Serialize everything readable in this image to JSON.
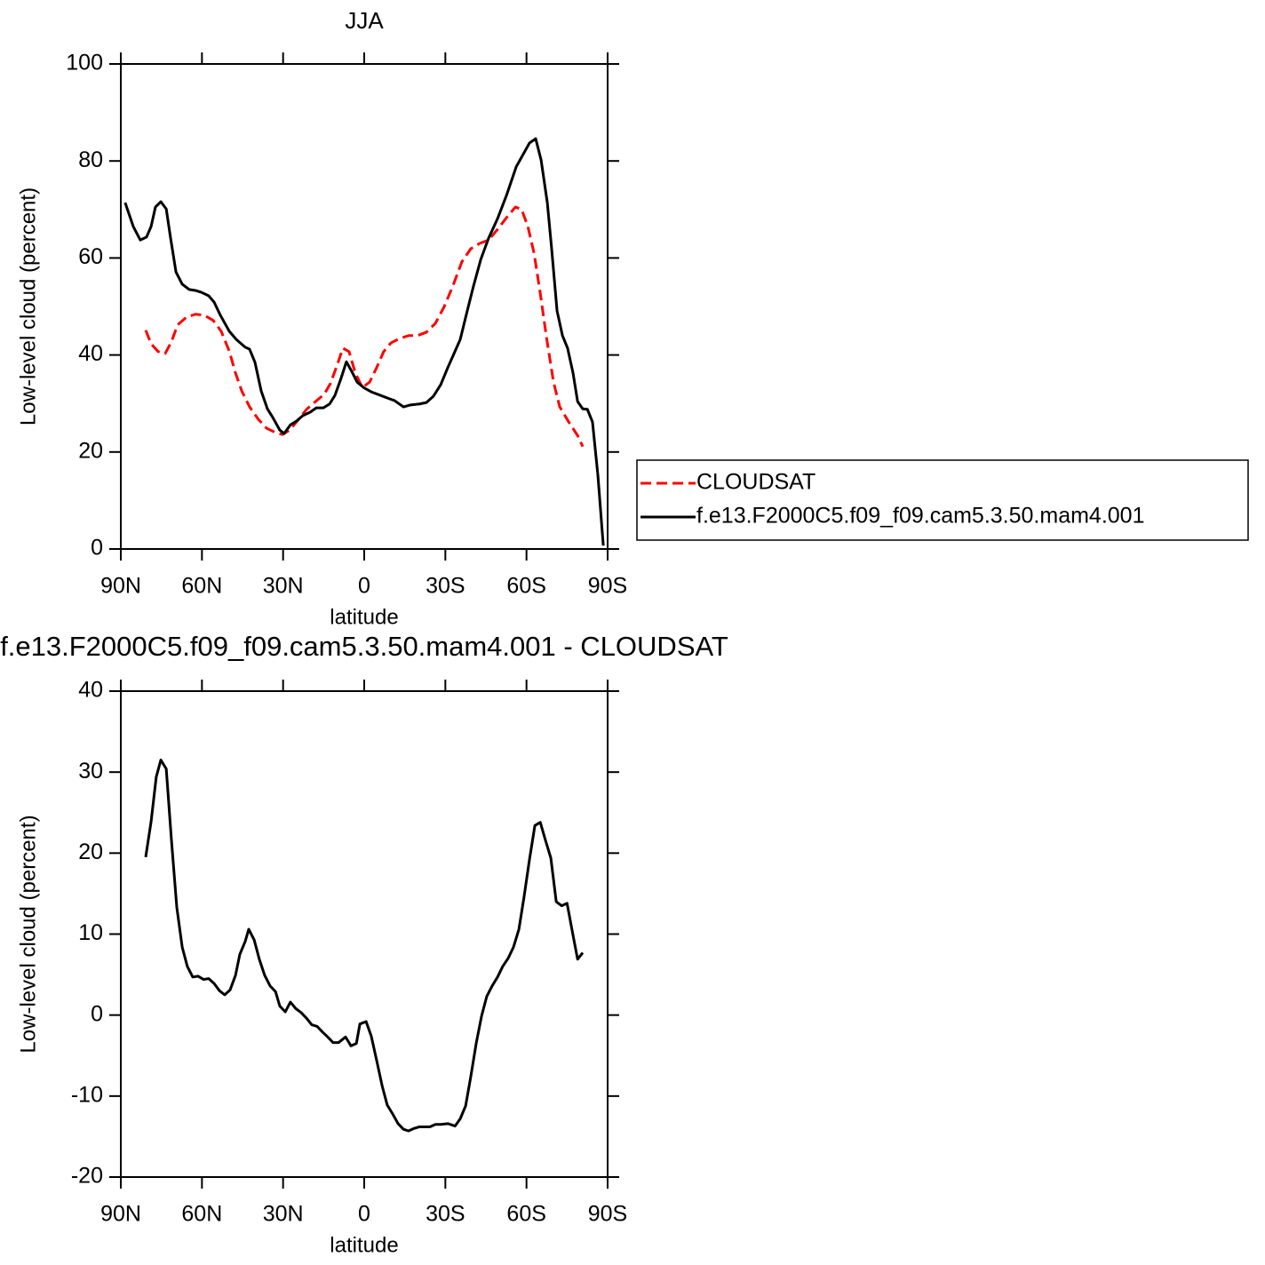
{
  "chart_data": [
    {
      "type": "line",
      "title": "JJA",
      "xlabel": "latitude",
      "ylabel": "Low-level cloud (percent)",
      "xlim": [
        90,
        -90
      ],
      "xticks": [
        {
          "value": 90,
          "label": "90N"
        },
        {
          "value": 60,
          "label": "60N"
        },
        {
          "value": 30,
          "label": "30N"
        },
        0,
        {
          "value": -30,
          "label": "30S"
        },
        {
          "value": -60,
          "label": "60S"
        },
        {
          "value": -90,
          "label": "90S"
        }
      ],
      "ylim": [
        0,
        100
      ],
      "yticks": [
        0,
        20,
        40,
        60,
        80,
        100
      ],
      "legend": "right",
      "series": [
        {
          "name": "CLOUDSAT",
          "color": "#ff0000",
          "linestyle": "dashed",
          "x": [
            80.8,
            78.8,
            76.2,
            73.6,
            71.3,
            69.0,
            65.7,
            62.4,
            59.1,
            55.8,
            52.9,
            49.9,
            47.6,
            45.3,
            42.4,
            39.1,
            36.1,
            32.8,
            30.2,
            27.6,
            24.3,
            21.3,
            18.0,
            14.8,
            12.5,
            9.9,
            7.9,
            5.6,
            3.3,
            0.7,
            -2.0,
            -4.6,
            -7.2,
            -9.9,
            -13.1,
            -16.4,
            -19.7,
            -23.0,
            -26.3,
            -29.6,
            -32.9,
            -36.1,
            -39.4,
            -42.7,
            -46.0,
            -49.3,
            -52.6,
            -55.9,
            -58.2,
            -60.5,
            -62.8,
            -65.1,
            -67.4,
            -70.0,
            -72.3,
            -75.6,
            -78.9,
            -80.8
          ],
          "values": [
            45.1,
            42.3,
            40.7,
            40.3,
            42.7,
            46.2,
            47.8,
            48.4,
            48.2,
            47.1,
            44.9,
            40.8,
            36.3,
            32.6,
            29.3,
            26.7,
            24.9,
            24.0,
            23.6,
            24.5,
            26.7,
            28.8,
            30.4,
            31.9,
            34.1,
            38.1,
            41.4,
            40.7,
            36.3,
            33.3,
            34.4,
            37.4,
            40.7,
            42.5,
            43.4,
            44.0,
            44.0,
            44.7,
            46.5,
            50.0,
            54.4,
            59.2,
            61.9,
            63.0,
            63.7,
            65.9,
            68.3,
            70.5,
            70.0,
            66.5,
            61.0,
            52.7,
            43.6,
            34.4,
            29.3,
            26.2,
            23.4,
            21.1
          ]
        },
        {
          "name": "f.e13.F2000C5.f09_f09.cam5.3.50.mam4.001",
          "color": "#000000",
          "linestyle": "solid",
          "x": [
            88.4,
            85.4,
            82.8,
            80.5,
            78.8,
            77.2,
            75.2,
            73.2,
            71.6,
            69.6,
            67.3,
            64.7,
            62.4,
            60.1,
            57.5,
            55.5,
            53.2,
            49.9,
            47.3,
            44.0,
            42.4,
            40.4,
            38.1,
            35.8,
            33.8,
            31.2,
            29.6,
            27.3,
            25.0,
            22.7,
            20.0,
            17.7,
            15.1,
            12.8,
            10.8,
            8.5,
            6.6,
            4.6,
            2.6,
            0,
            -2.6,
            -5.9,
            -9.2,
            -11.2,
            -14.5,
            -17.1,
            -20.4,
            -23.0,
            -25.6,
            -28.3,
            -30.9,
            -33.6,
            -35.5,
            -38.1,
            -40.4,
            -43.1,
            -46.0,
            -49.3,
            -52.6,
            -56.2,
            -59.1,
            -61.1,
            -63.4,
            -65.4,
            -67.7,
            -69.3,
            -71.3,
            -73.3,
            -75.2,
            -77.2,
            -78.9,
            -80.8,
            -82.5,
            -84.4,
            -86.4,
            -88.4
          ],
          "values": [
            71.4,
            66.5,
            63.7,
            64.3,
            66.5,
            70.5,
            71.6,
            70.1,
            64.1,
            57.1,
            54.6,
            53.5,
            53.3,
            52.9,
            52.2,
            50.9,
            48.2,
            44.9,
            43.2,
            41.6,
            41.2,
            38.5,
            32.6,
            28.9,
            27.1,
            24.5,
            23.8,
            25.6,
            26.4,
            27.5,
            28.2,
            29.1,
            29.1,
            29.9,
            31.7,
            35.3,
            38.6,
            36.6,
            34.4,
            33.2,
            32.4,
            31.7,
            31.0,
            30.6,
            29.3,
            29.7,
            29.9,
            30.2,
            31.5,
            33.9,
            37.4,
            40.8,
            43.2,
            49.1,
            54.2,
            59.7,
            64.1,
            68.1,
            72.9,
            78.8,
            81.7,
            83.7,
            84.6,
            80.2,
            71.4,
            61.9,
            49.1,
            44.0,
            41.4,
            36.3,
            30.4,
            28.9,
            28.8,
            26.2,
            15.2,
            0.7
          ]
        }
      ]
    },
    {
      "type": "line",
      "title": "f.e13.F2000C5.f09_f09.cam5.3.50.mam4.001 - CLOUDSAT",
      "xlabel": "latitude",
      "ylabel": "Low-level cloud (percent)",
      "xlim": [
        90,
        -90
      ],
      "xticks": [
        {
          "value": 90,
          "label": "90N"
        },
        {
          "value": 60,
          "label": "60N"
        },
        {
          "value": 30,
          "label": "30N"
        },
        0,
        {
          "value": -30,
          "label": "30S"
        },
        {
          "value": -60,
          "label": "60S"
        },
        {
          "value": -90,
          "label": "90S"
        }
      ],
      "ylim": [
        -20,
        40
      ],
      "yticks": [
        -20,
        -10,
        0,
        10,
        20,
        30,
        40
      ],
      "color": "#000000",
      "x": [
        80.8,
        78.8,
        76.9,
        75.2,
        73.2,
        71.3,
        69.3,
        67.3,
        65.4,
        63.4,
        61.4,
        59.4,
        57.5,
        55.5,
        53.5,
        51.6,
        49.6,
        47.6,
        46.0,
        44.0,
        42.7,
        40.7,
        38.8,
        36.8,
        34.8,
        32.8,
        31.2,
        29.2,
        27.3,
        25.3,
        23.3,
        21.3,
        19.4,
        17.4,
        15.4,
        13.5,
        11.5,
        9.5,
        6.9,
        4.9,
        2.9,
        1.6,
        -0.7,
        -2.6,
        -4.6,
        -6.6,
        -8.5,
        -10.5,
        -12.5,
        -14.5,
        -16.4,
        -18.4,
        -20.4,
        -22.3,
        -24.3,
        -26.3,
        -28.3,
        -30.9,
        -33.6,
        -35.5,
        -37.5,
        -39.4,
        -41.4,
        -43.4,
        -45.3,
        -47.3,
        -49.3,
        -51.2,
        -53.2,
        -55.2,
        -57.2,
        -59.1,
        -61.1,
        -63.1,
        -65.1,
        -67.0,
        -69.0,
        -71.0,
        -73.0,
        -75.0,
        -76.9,
        -78.9,
        -80.8
      ],
      "values": [
        19.5,
        23.9,
        29.4,
        31.5,
        30.4,
        21.7,
        13.3,
        8.4,
        6.0,
        4.7,
        4.8,
        4.4,
        4.5,
        3.9,
        3.0,
        2.5,
        3.1,
        4.9,
        7.5,
        9.1,
        10.6,
        9.3,
        6.9,
        4.9,
        3.6,
        2.9,
        1.1,
        0.4,
        1.6,
        0.8,
        0.3,
        -0.4,
        -1.2,
        -1.4,
        -2.1,
        -2.7,
        -3.4,
        -3.4,
        -2.7,
        -3.8,
        -3.5,
        -1.1,
        -0.8,
        -2.6,
        -5.6,
        -8.7,
        -11.1,
        -12.2,
        -13.4,
        -14.1,
        -14.3,
        -14.0,
        -13.8,
        -13.8,
        -13.8,
        -13.5,
        -13.5,
        -13.4,
        -13.7,
        -12.8,
        -11.2,
        -7.6,
        -3.5,
        -0.1,
        2.3,
        3.6,
        4.7,
        6.0,
        7.0,
        8.4,
        10.6,
        14.6,
        19.2,
        23.4,
        23.8,
        21.6,
        19.4,
        14.0,
        13.5,
        13.8,
        10.4,
        6.9,
        7.7
      ]
    }
  ]
}
